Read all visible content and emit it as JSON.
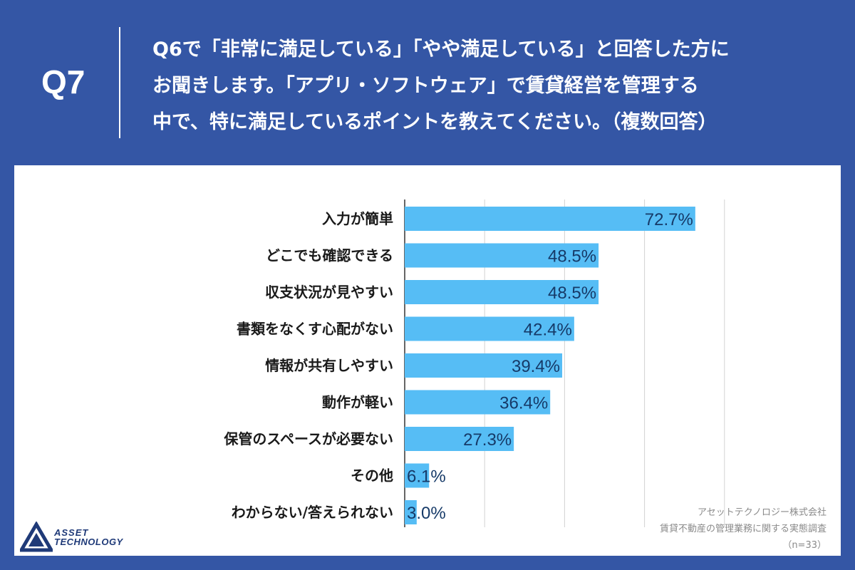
{
  "header": {
    "q_number": "Q7",
    "question_lines": [
      "Q6で「非常に満足している」「やや満足している」と回答した方に",
      "お聞きします。「アプリ・ソフトウェア」で賃貸経営を管理する",
      "中で、特に満足しているポイントを教えてください。（複数回答）"
    ]
  },
  "chart_data": {
    "type": "bar",
    "orientation": "horizontal",
    "categories": [
      "入力が簡単",
      "どこでも確認できる",
      "収支状況が見やすい",
      "書類をなくす心配がない",
      "情報が共有しやすい",
      "動作が軽い",
      "保管のスペースが必要ない",
      "その他",
      "わからない/答えられない"
    ],
    "values": [
      72.7,
      48.5,
      48.5,
      42.4,
      39.4,
      36.4,
      27.3,
      6.1,
      3.0
    ],
    "value_labels": [
      "72.7%",
      "48.5%",
      "48.5%",
      "42.4%",
      "39.4%",
      "36.4%",
      "27.3%",
      "6.1%",
      "3.0%"
    ],
    "xlim": [
      0,
      80
    ],
    "grid": true,
    "bar_color": "#56bdf5"
  },
  "logo": {
    "line1": "ASSET",
    "line2": "TECHNOLOGY"
  },
  "source": {
    "company": "アセットテクノロジー株式会社",
    "survey": "賃貸不動産の管理業務に関する実態調査",
    "sample": "（n=33）"
  },
  "colors": {
    "background": "#3456a5",
    "bar": "#56bdf5",
    "value_text": "#163a68"
  }
}
